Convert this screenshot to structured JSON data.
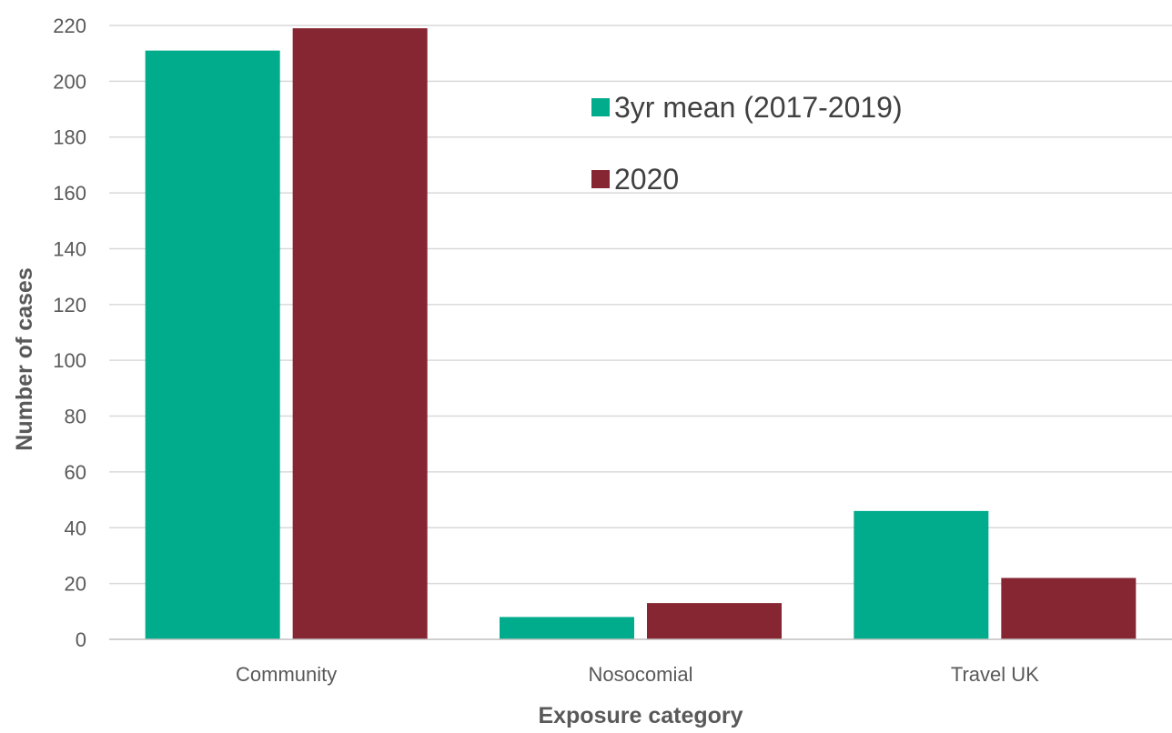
{
  "chart_data": {
    "type": "bar",
    "title": "",
    "xlabel": "Exposure category",
    "ylabel": "Number of cases",
    "categories": [
      "Community",
      "Nosocomial",
      "Travel UK"
    ],
    "series": [
      {
        "name": "3yr mean (2017-2019)",
        "values": [
          211,
          8,
          46
        ],
        "color": "#00ac8c"
      },
      {
        "name": "2020",
        "values": [
          219,
          13,
          22
        ],
        "color": "#862633"
      }
    ],
    "ylim": [
      0,
      220
    ],
    "yticks": [
      0,
      20,
      40,
      60,
      80,
      100,
      120,
      140,
      160,
      180,
      200,
      220
    ],
    "grid": true,
    "legend_position": "top-right"
  }
}
